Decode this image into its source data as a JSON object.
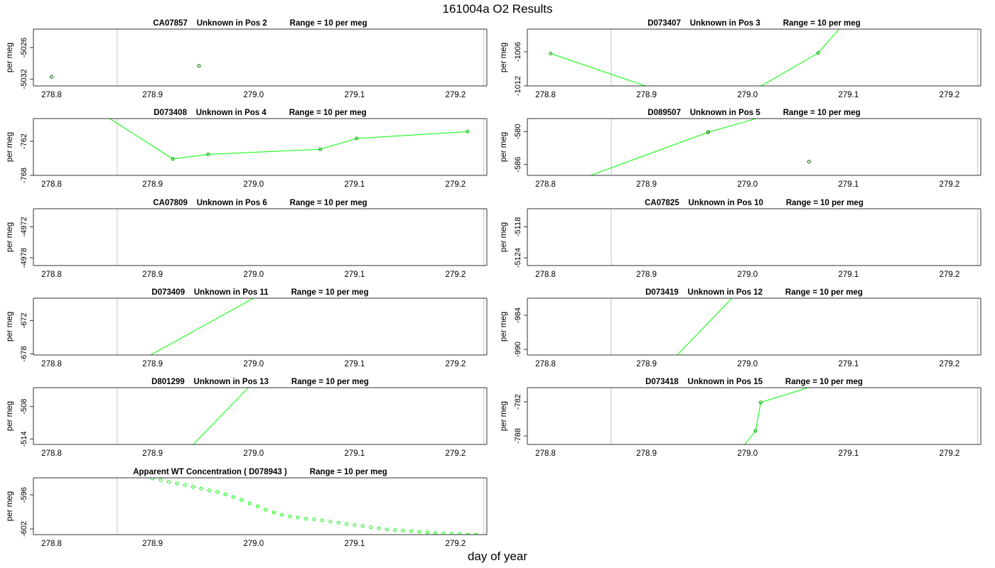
{
  "title": "161004a  O2 Results",
  "xlabel": "day of year",
  "chart_data": [
    {
      "type": "line",
      "title": "CA07857    Unknown in Pos 2          Range = 10 per meg",
      "ylabel": "per meg",
      "xlim": [
        278.782,
        279.231
      ],
      "ylim": [
        -5033.3,
        -5022.5
      ],
      "x_ticks": [
        "278.8",
        "278.9",
        "279.0",
        "279.1",
        "279.2"
      ],
      "y_ticks": [
        "-5026",
        "-5032"
      ],
      "vlines": [
        278.865,
        279.228
      ],
      "series": [
        {
          "x": [
            278.8
          ],
          "y": [
            -5031.6
          ],
          "marker_color": "#006400",
          "line": false
        },
        {
          "x": [
            278.946
          ],
          "y": [
            -5029.5
          ],
          "marker_color": "#006400",
          "line": false
        }
      ]
    },
    {
      "type": "line",
      "title": "D073407    Unknown in Pos 3          Range = 10 per meg",
      "ylabel": "per meg",
      "xlim": [
        278.782,
        279.231
      ],
      "ylim": [
        -1012.0,
        -1002.0
      ],
      "x_ticks": [
        "278.8",
        "278.9",
        "279.0",
        "279.1",
        "279.2"
      ],
      "y_ticks": [
        "-1006",
        "-1012"
      ],
      "vlines": [
        278.865,
        279.228
      ],
      "series": [
        {
          "x": [
            278.805,
            278.945,
            278.994,
            279.07,
            279.115
          ],
          "y": [
            -1006.3,
            -1014.8,
            -1014.0,
            -1006.2,
            -997.0
          ],
          "marker_color": "#00a000",
          "line": true
        }
      ]
    },
    {
      "type": "line",
      "title": "D073408    Unknown in Pos 4          Range = 10 per meg",
      "ylabel": "per meg",
      "xlim": [
        278.782,
        279.231
      ],
      "ylim": [
        -768.0,
        -758.0
      ],
      "x_ticks": [
        "278.8",
        "278.9",
        "279.0",
        "279.1",
        "279.2"
      ],
      "y_ticks": [
        "-762",
        "-768"
      ],
      "vlines": [
        278.865,
        279.228
      ],
      "series": [
        {
          "x": [
            278.84,
            278.92,
            278.955,
            279.066,
            279.102,
            279.212
          ],
          "y": [
            -756.0,
            -765.1,
            -764.3,
            -763.4,
            -761.5,
            -760.3
          ],
          "marker_color": "#00a000",
          "line": true
        }
      ]
    },
    {
      "type": "line",
      "title": "D089507    Unknown in Pos 5          Range = 10 per meg",
      "ylabel": "per meg",
      "xlim": [
        278.782,
        279.231
      ],
      "ylim": [
        -588.0,
        -577.6
      ],
      "x_ticks": [
        "278.8",
        "278.9",
        "279.0",
        "279.1",
        "279.2"
      ],
      "y_ticks": [
        "-580",
        "-586"
      ],
      "vlines": [
        278.865,
        279.228
      ],
      "series": [
        {
          "x": [
            278.83,
            278.961,
            279.02
          ],
          "y": [
            -589.0,
            -580.1,
            -577.0
          ],
          "marker_color": "#00a000",
          "line": true
        },
        {
          "x": [
            278.961
          ],
          "y": [
            -580.1
          ],
          "marker_color": "#006400",
          "line": false
        },
        {
          "x": [
            279.061
          ],
          "y": [
            -585.5
          ],
          "marker_color": "#006400",
          "line": false
        }
      ]
    },
    {
      "type": "line",
      "title": "CA07809    Unknown in Pos 6          Range = 10 per meg",
      "ylabel": "per meg",
      "xlim": [
        278.782,
        279.231
      ],
      "ylim": [
        -4979.5,
        -4968.5
      ],
      "x_ticks": [
        "278.8",
        "278.9",
        "279.0",
        "279.1",
        "279.2"
      ],
      "y_ticks": [
        "-4972",
        "-4978"
      ],
      "vlines": [
        278.865,
        279.228
      ],
      "series": []
    },
    {
      "type": "line",
      "title": "CA07825    Unknown in Pos 10          Range = 10 per meg",
      "ylabel": "per meg",
      "xlim": [
        278.782,
        279.231
      ],
      "ylim": [
        -5125.5,
        -5114.5
      ],
      "x_ticks": [
        "278.8",
        "278.9",
        "279.0",
        "279.1",
        "279.2"
      ],
      "y_ticks": [
        "-5118",
        "-5124"
      ],
      "vlines": [
        278.865,
        279.228
      ],
      "series": []
    },
    {
      "type": "line",
      "title": "D073409    Unknown in Pos 11          Range = 10 per meg",
      "ylabel": "per meg",
      "xlim": [
        278.782,
        279.231
      ],
      "ylim": [
        -678.2,
        -668.0
      ],
      "x_ticks": [
        "278.8",
        "278.9",
        "279.0",
        "279.1",
        "279.2"
      ],
      "y_ticks": [
        "-672",
        "-678"
      ],
      "vlines": [
        278.865,
        279.228
      ],
      "series": [
        {
          "x": [
            278.88,
            279.01
          ],
          "y": [
            -680.0,
            -667.0
          ],
          "marker_color": "#00a000",
          "line": true,
          "markers": false
        }
      ]
    },
    {
      "type": "line",
      "title": "D073419    Unknown in Pos 12          Range = 10 per meg",
      "ylabel": "per meg",
      "xlim": [
        278.782,
        279.231
      ],
      "ylim": [
        -991.0,
        -981.0
      ],
      "x_ticks": [
        "278.8",
        "278.9",
        "279.0",
        "279.1",
        "279.2"
      ],
      "y_ticks": [
        "-984",
        "-990"
      ],
      "vlines": [
        278.865,
        279.228
      ],
      "series": [
        {
          "x": [
            278.925,
            278.99
          ],
          "y": [
            -992.0,
            -980.0
          ],
          "marker_color": "#00a000",
          "line": true,
          "markers": false
        }
      ]
    },
    {
      "type": "line",
      "title": "D801299    Unknown in Pos 13          Range = 10 per meg",
      "ylabel": "per meg",
      "xlim": [
        278.782,
        279.231
      ],
      "ylim": [
        -515.0,
        -504.5
      ],
      "x_ticks": [
        "278.8",
        "278.9",
        "279.0",
        "279.1",
        "279.2"
      ],
      "y_ticks": [
        "-508",
        "-514"
      ],
      "vlines": [
        278.865,
        279.228
      ],
      "series": [
        {
          "x": [
            278.935,
            279.0
          ],
          "y": [
            -516.0,
            -503.5
          ],
          "marker_color": "#00a000",
          "line": true,
          "markers": false
        }
      ]
    },
    {
      "type": "line",
      "title": "D073418    Unknown in Pos 15          Range = 10 per meg",
      "ylabel": "per meg",
      "xlim": [
        278.782,
        279.231
      ],
      "ylim": [
        -789.5,
        -779.5
      ],
      "x_ticks": [
        "278.8",
        "278.9",
        "279.0",
        "279.1",
        "279.2"
      ],
      "y_ticks": [
        "-782",
        "-788"
      ],
      "vlines": [
        278.865,
        279.228
      ],
      "series": [
        {
          "x": [
            278.995,
            279.008,
            279.013,
            279.06
          ],
          "y": [
            -790.0,
            -787.1,
            -782.1,
            -779.5
          ],
          "marker_color": "#00a000",
          "line": true,
          "markers_index": [
            1,
            2
          ]
        }
      ]
    },
    {
      "type": "scatter",
      "title": "Apparent WT Concentration ( D078943 )          Range = 10 per meg",
      "ylabel": "per meg",
      "xlim": [
        278.782,
        279.231
      ],
      "ylim": [
        -603.0,
        -593.0
      ],
      "x_ticks": [
        "278.8",
        "278.9",
        "279.0",
        "279.1",
        "279.2"
      ],
      "y_ticks": [
        "-596",
        "-602"
      ],
      "vlines": [
        278.865,
        279.228
      ],
      "series": [
        {
          "x": [
            278.9,
            278.908,
            278.916,
            278.924,
            278.932,
            278.94,
            278.948,
            278.956,
            278.964,
            278.972,
            278.98,
            278.988,
            278.996,
            279.004,
            279.012,
            279.02,
            279.028,
            279.036,
            279.044,
            279.052,
            279.06,
            279.068,
            279.076,
            279.084,
            279.092,
            279.1,
            279.108,
            279.116,
            279.124,
            279.132,
            279.14,
            279.148,
            279.156,
            279.164,
            279.172,
            279.18,
            279.188,
            279.196,
            279.204,
            279.212,
            279.22
          ],
          "y": [
            -593.1,
            -593.4,
            -593.7,
            -594.0,
            -594.3,
            -594.6,
            -594.9,
            -595.2,
            -595.5,
            -595.9,
            -596.4,
            -596.9,
            -597.5,
            -598.0,
            -598.6,
            -599.1,
            -599.5,
            -599.8,
            -600.0,
            -600.2,
            -600.3,
            -600.5,
            -600.7,
            -600.9,
            -601.1,
            -601.3,
            -601.5,
            -601.7,
            -601.9,
            -602.1,
            -602.2,
            -602.3,
            -602.4,
            -602.5,
            -602.6,
            -602.7,
            -602.8,
            -602.9,
            -602.9,
            -603.0,
            -603.0
          ],
          "marker_color": "#00ff00",
          "line": false
        }
      ]
    }
  ]
}
